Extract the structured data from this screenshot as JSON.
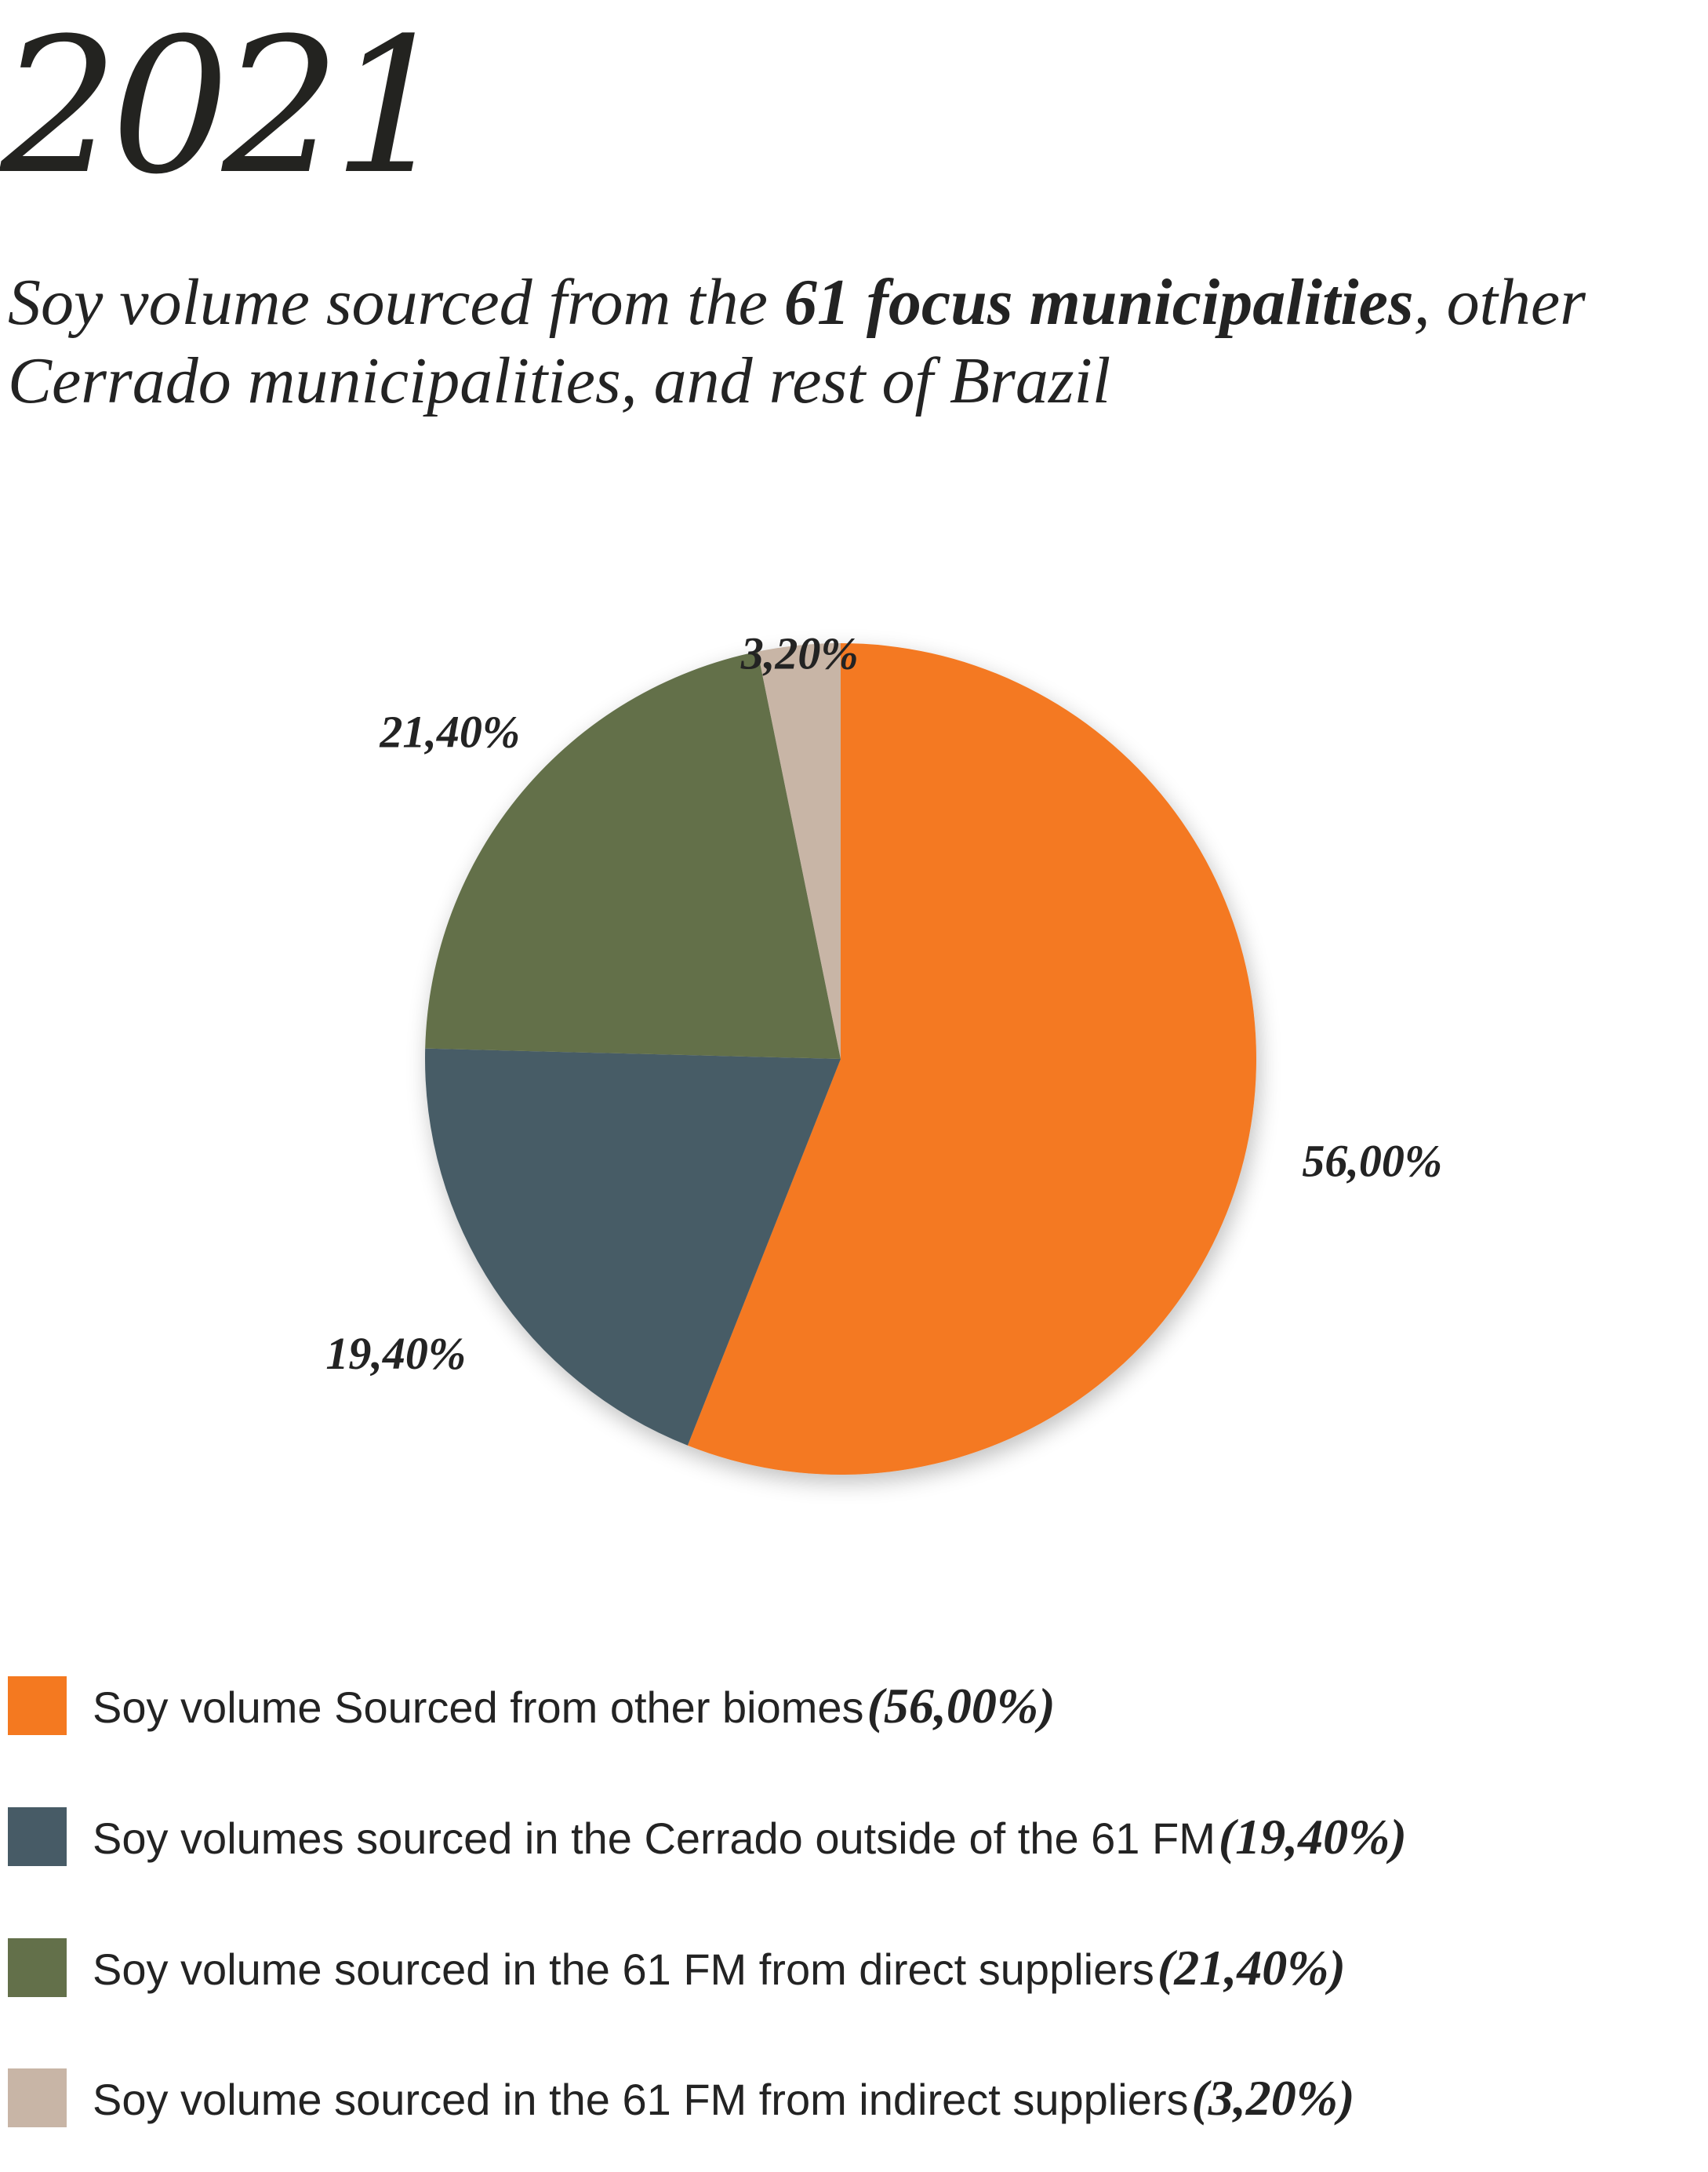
{
  "chart_data": {
    "type": "pie",
    "title": "2021",
    "subtitle_parts": [
      {
        "text": "Soy volume sourced from the ",
        "bold": false
      },
      {
        "text": "61 focus municipalities",
        "bold": true
      },
      {
        "text": ", other Cerrado municipalities, and rest of Brazil",
        "bold": false
      }
    ],
    "slices": [
      {
        "name": "Soy volume Sourced from other biomes",
        "value": 56.0,
        "label": "56,00%",
        "legend_value": "(56,00%)",
        "color": "#F47920"
      },
      {
        "name": "Soy volumes sourced in the Cerrado outside of the 61 FM",
        "value": 19.4,
        "label": "19,40%",
        "legend_value": "(19,40%)",
        "color": "#475B66"
      },
      {
        "name": "Soy volume sourced in the 61 FM from direct suppliers",
        "value": 21.4,
        "label": "21,40%",
        "legend_value": "(21,40%)",
        "color": "#63704A"
      },
      {
        "name": "Soy volume sourced in the 61 FM from indirect suppliers",
        "value": 3.2,
        "label": "3,20%",
        "legend_value": "(3,20%)",
        "color": "#C8B5A6"
      }
    ],
    "legend_position": "bottom",
    "start_angle": "12 o'clock",
    "direction": "clockwise"
  }
}
